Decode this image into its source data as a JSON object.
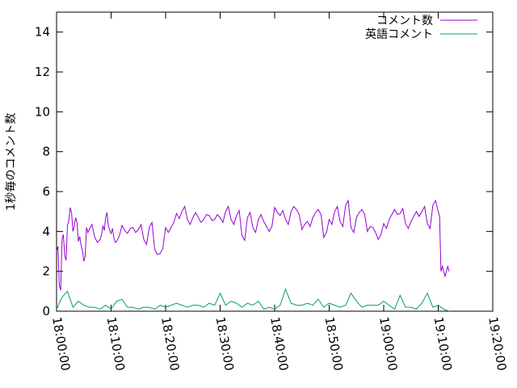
{
  "chart_data": {
    "type": "line",
    "title": "",
    "xlabel": "",
    "ylabel": "1秒毎のコメント数",
    "xlim": [
      "18:00:00",
      "19:20:00"
    ],
    "ylim": [
      0,
      15
    ],
    "x_ticks": [
      "18:00:00",
      "18:10:00",
      "18:20:00",
      "18:30:00",
      "18:40:00",
      "18:50:00",
      "19:00:00",
      "19:10:00",
      "19:20:00"
    ],
    "y_ticks": [
      "0",
      "2",
      "4",
      "6",
      "8",
      "10",
      "12",
      "14"
    ],
    "grid": false,
    "legend_position": "top-right",
    "series": [
      {
        "name": "コメント数",
        "color": "#9400d3",
        "x": [
          "18:00:00",
          "18:00:30",
          "18:01:00",
          "18:01:30",
          "18:02:00",
          "18:02:30",
          "18:03:00",
          "18:03:30",
          "18:04:00",
          "18:04:30",
          "18:05:00",
          "18:05:30",
          "18:06:00",
          "18:07:00",
          "18:08:00",
          "18:08:30",
          "18:09:00",
          "18:09:30",
          "18:10:00",
          "18:10:30",
          "18:11:00",
          "18:12:00",
          "18:13:00",
          "18:14:00",
          "18:15:00",
          "18:16:00",
          "18:17:00",
          "18:18:00",
          "18:19:00",
          "18:20:00",
          "18:21:00",
          "18:22:00",
          "18:23:00",
          "18:24:00",
          "18:25:00",
          "18:26:00",
          "18:27:00",
          "18:28:00",
          "18:29:00",
          "18:30:00",
          "18:31:00",
          "18:32:00",
          "18:33:00",
          "18:34:00",
          "18:35:00",
          "18:36:00",
          "18:37:00",
          "18:38:00",
          "18:39:00",
          "18:40:00",
          "18:41:00",
          "18:42:00",
          "18:43:00",
          "18:44:00",
          "18:45:00",
          "18:46:00",
          "18:47:00",
          "18:48:00",
          "18:49:00",
          "18:50:00",
          "18:51:00",
          "18:52:00",
          "18:53:00",
          "18:54:00",
          "18:55:00",
          "18:56:00",
          "18:57:00",
          "18:58:00",
          "18:59:00",
          "19:00:00",
          "19:01:00",
          "19:02:00",
          "19:03:00",
          "19:04:00",
          "19:05:00",
          "19:06:00",
          "19:07:00",
          "19:08:00",
          "19:09:00",
          "19:10:00",
          "19:10:30",
          "19:11:00",
          "19:11:30",
          "19:12:00"
        ],
        "y": [
          3.0,
          1.3,
          3.6,
          2.8,
          4.3,
          5.2,
          4.0,
          4.7,
          3.5,
          3.3,
          2.5,
          4.2,
          4.1,
          3.7,
          3.6,
          4.3,
          4.7,
          4.3,
          3.9,
          3.7,
          3.5,
          4.3,
          3.9,
          4.2,
          4.1,
          3.6,
          4.2,
          3.1,
          2.9,
          4.2,
          4.2,
          4.9,
          5.0,
          4.6,
          4.7,
          4.7,
          4.6,
          4.8,
          4.6,
          4.7,
          5.0,
          4.6,
          4.8,
          3.8,
          4.7,
          4.2,
          4.6,
          4.5,
          4.0,
          5.2,
          4.8,
          4.6,
          5.0,
          5.1,
          4.1,
          4.5,
          4.7,
          5.1,
          3.7,
          4.6,
          5.0,
          4.5,
          5.3,
          4.2,
          4.7,
          5.1,
          4.0,
          4.2,
          3.6,
          4.4,
          4.6,
          5.1,
          4.9,
          4.4,
          4.5,
          5.0,
          5.0,
          4.4,
          5.3,
          5.0,
          2.0,
          2.0,
          2.0,
          2.0
        ],
        "ragged": true
      },
      {
        "name": "英語コメント",
        "color": "#009e73",
        "x": [
          "18:00:00",
          "18:01:00",
          "18:02:00",
          "18:03:00",
          "18:04:00",
          "18:05:00",
          "18:06:00",
          "18:07:00",
          "18:08:00",
          "18:09:00",
          "18:10:00",
          "18:11:00",
          "18:12:00",
          "18:13:00",
          "18:14:00",
          "18:15:00",
          "18:16:00",
          "18:17:00",
          "18:18:00",
          "18:19:00",
          "18:20:00",
          "18:21:00",
          "18:22:00",
          "18:23:00",
          "18:24:00",
          "18:25:00",
          "18:26:00",
          "18:27:00",
          "18:28:00",
          "18:29:00",
          "18:30:00",
          "18:31:00",
          "18:32:00",
          "18:33:00",
          "18:34:00",
          "18:35:00",
          "18:36:00",
          "18:37:00",
          "18:38:00",
          "18:39:00",
          "18:40:00",
          "18:41:00",
          "18:42:00",
          "18:43:00",
          "18:44:00",
          "18:45:00",
          "18:46:00",
          "18:47:00",
          "18:48:00",
          "18:49:00",
          "18:50:00",
          "18:51:00",
          "18:52:00",
          "18:53:00",
          "18:54:00",
          "18:55:00",
          "18:56:00",
          "18:57:00",
          "18:58:00",
          "18:59:00",
          "19:00:00",
          "19:01:00",
          "19:02:00",
          "19:03:00",
          "19:04:00",
          "19:05:00",
          "19:06:00",
          "19:07:00",
          "19:08:00",
          "19:09:00",
          "19:10:00",
          "19:11:00",
          "19:12:00"
        ],
        "y": [
          0.1,
          0.7,
          1.0,
          0.2,
          0.5,
          0.3,
          0.2,
          0.2,
          0.1,
          0.3,
          0.1,
          0.5,
          0.6,
          0.2,
          0.2,
          0.1,
          0.2,
          0.2,
          0.1,
          0.3,
          0.2,
          0.3,
          0.4,
          0.3,
          0.2,
          0.3,
          0.3,
          0.2,
          0.4,
          0.3,
          0.9,
          0.3,
          0.5,
          0.4,
          0.2,
          0.4,
          0.3,
          0.5,
          0.1,
          0.2,
          0.1,
          0.3,
          1.1,
          0.4,
          0.3,
          0.3,
          0.4,
          0.3,
          0.6,
          0.2,
          0.4,
          0.3,
          0.2,
          0.3,
          0.9,
          0.5,
          0.2,
          0.3,
          0.3,
          0.3,
          0.5,
          0.3,
          0.1,
          0.8,
          0.2,
          0.2,
          0.1,
          0.4,
          0.9,
          0.2,
          0.3,
          0.1,
          0.0
        ],
        "ragged": false
      }
    ]
  }
}
